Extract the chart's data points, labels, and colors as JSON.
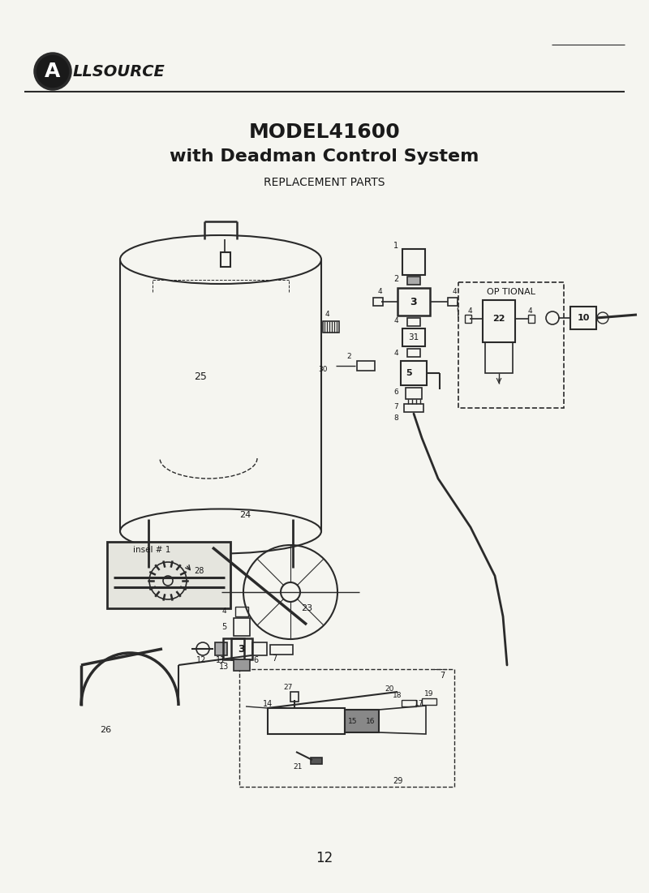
{
  "title_line1": "MODEL41600",
  "title_line2": "with Deadman Control System",
  "subtitle": "REPLACEMENT PARTS",
  "brand": "ALLSOURCE",
  "page_number": "12",
  "bg_color": "#f5f5f0",
  "line_color": "#2a2a2a",
  "text_color": "#1a1a1a",
  "optional_label": "OP TIONAL",
  "inset_label": "insel # 1"
}
